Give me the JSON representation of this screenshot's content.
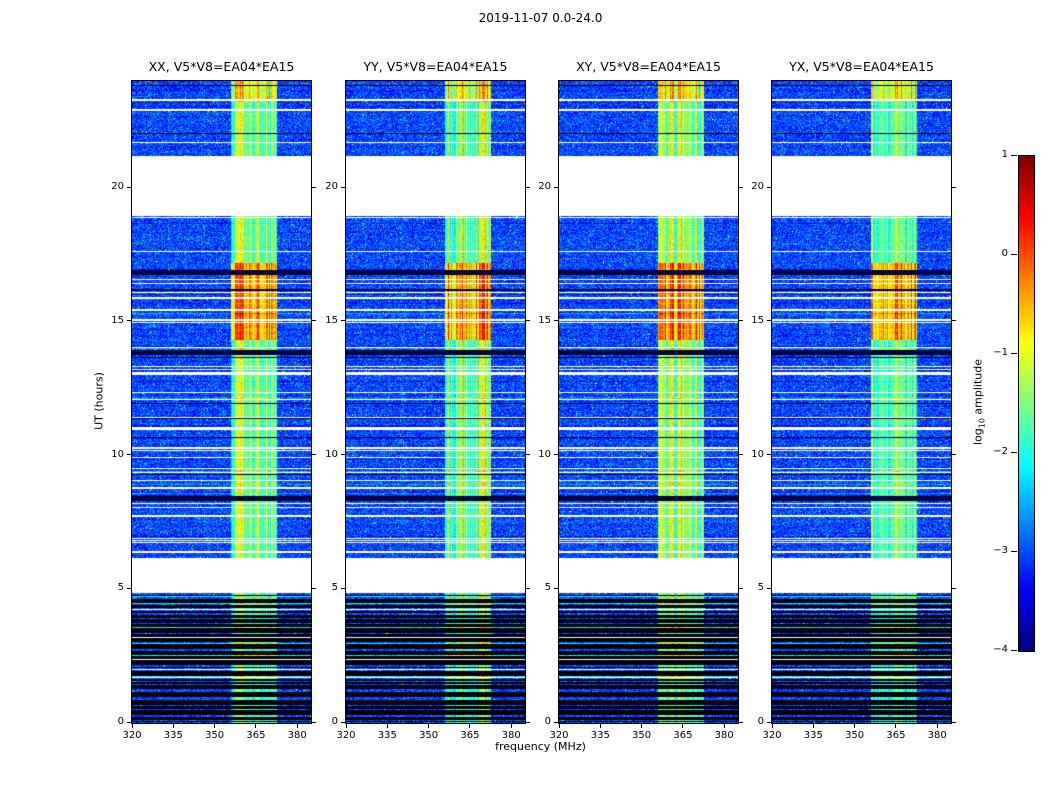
{
  "chart_data": {
    "type": "heatmap",
    "title": "2019-11-07 0.0-24.0",
    "panels": [
      {
        "id": "XX",
        "title": "XX, V5*V8=EA04*EA15"
      },
      {
        "id": "YY",
        "title": "YY, V5*V8=EA04*EA15"
      },
      {
        "id": "XY",
        "title": "XY, V5*V8=EA04*EA15"
      },
      {
        "id": "YX",
        "title": "YX, V5*V8=EA04*EA15"
      }
    ],
    "x_axis": {
      "label": "frequency (MHz)",
      "range_mhz": [
        320,
        385
      ],
      "ticks": [
        320,
        335,
        350,
        365,
        380
      ]
    },
    "y_axis": {
      "label": "UT (hours)",
      "range_hours": [
        0,
        24
      ],
      "ticks": [
        0,
        5,
        10,
        15,
        20
      ]
    },
    "colorbar": {
      "label": "log10 amplitude",
      "label_log": "log",
      "label_sub": "10",
      "label_rest": " amplitude",
      "range": [
        -4,
        1
      ],
      "ticks": [
        1,
        0,
        -1,
        -2,
        -3,
        -4
      ],
      "colormap": "jet"
    },
    "features": {
      "background_level_log10": [
        -3.5,
        -2.6
      ],
      "rfi_band_mhz": [
        356,
        372.5
      ],
      "rfi_band_level_log10": [
        -2.6,
        -1.1
      ],
      "bright_interval_hours": [
        14.3,
        17.2
      ],
      "top_bright_hours": [
        23.2,
        24
      ],
      "no_data_gaps_hours": [
        [
          4.85,
          6.15
        ],
        [
          18.95,
          21.2
        ]
      ],
      "black_stripe_region_hours": [
        0,
        4.85
      ],
      "dark_line_clusters_hours": [
        8.4,
        13.85,
        16.85
      ],
      "white_dropout_line_rate": 0.05,
      "seed": 20191107
    }
  }
}
